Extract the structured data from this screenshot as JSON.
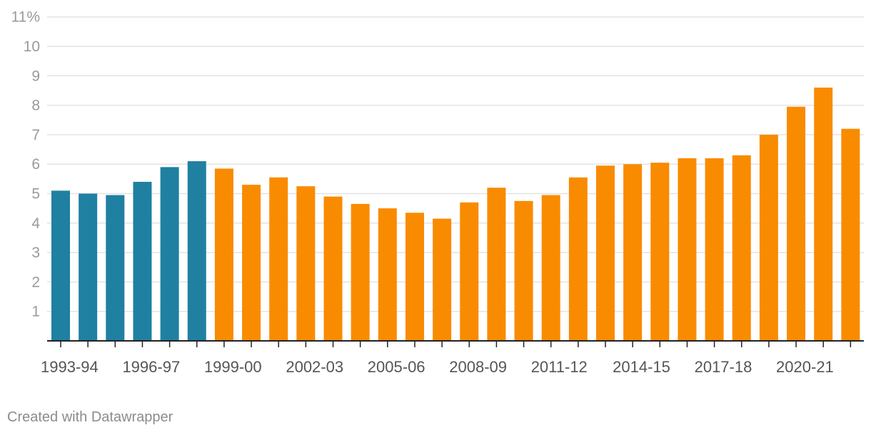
{
  "chart_data": {
    "type": "bar",
    "categories": [
      "1993-94",
      "1994-95",
      "1995-96",
      "1996-97",
      "1997-98",
      "1998-99",
      "1999-00",
      "2000-01",
      "2001-02",
      "2002-03",
      "2003-04",
      "2004-05",
      "2005-06",
      "2006-07",
      "2007-08",
      "2008-09",
      "2009-10",
      "2010-11",
      "2011-12",
      "2012-13",
      "2013-14",
      "2014-15",
      "2015-16",
      "2016-17",
      "2017-18",
      "2018-19",
      "2019-20",
      "2020-21",
      "2021-22",
      "2022-23"
    ],
    "values": [
      5.1,
      5.0,
      4.95,
      5.4,
      5.9,
      6.1,
      5.85,
      5.3,
      5.55,
      5.25,
      4.9,
      4.65,
      4.5,
      4.35,
      4.15,
      4.7,
      5.2,
      4.75,
      4.95,
      5.55,
      5.95,
      6.0,
      6.05,
      6.2,
      6.2,
      6.3,
      7.0,
      7.95,
      8.6,
      7.2
    ],
    "colors": [
      "#1f80a2",
      "#1f80a2",
      "#1f80a2",
      "#1f80a2",
      "#1f80a2",
      "#1f80a2",
      "#f98b00",
      "#f98b00",
      "#f98b00",
      "#f98b00",
      "#f98b00",
      "#f98b00",
      "#f98b00",
      "#f98b00",
      "#f98b00",
      "#f98b00",
      "#f98b00",
      "#f98b00",
      "#f98b00",
      "#f98b00",
      "#f98b00",
      "#f98b00",
      "#f98b00",
      "#f98b00",
      "#f98b00",
      "#f98b00",
      "#f98b00",
      "#f98b00",
      "#f98b00",
      "#f98b00"
    ],
    "ylim": [
      0,
      11
    ],
    "yticks": [
      1,
      2,
      3,
      4,
      5,
      6,
      7,
      8,
      9,
      10,
      11
    ],
    "ytick_labels": [
      "1",
      "2",
      "3",
      "4",
      "5",
      "6",
      "7",
      "8",
      "9",
      "10",
      "11%"
    ],
    "xtick_labels": [
      "1993-94",
      "1996-97",
      "1999-00",
      "2002-03",
      "2005-06",
      "2008-09",
      "2011-12",
      "2014-15",
      "2017-18",
      "2020-21"
    ],
    "xtick_every": 3,
    "grid": true,
    "title": "",
    "xlabel": "",
    "ylabel": ""
  },
  "footer": {
    "credit": "Created with Datawrapper"
  }
}
